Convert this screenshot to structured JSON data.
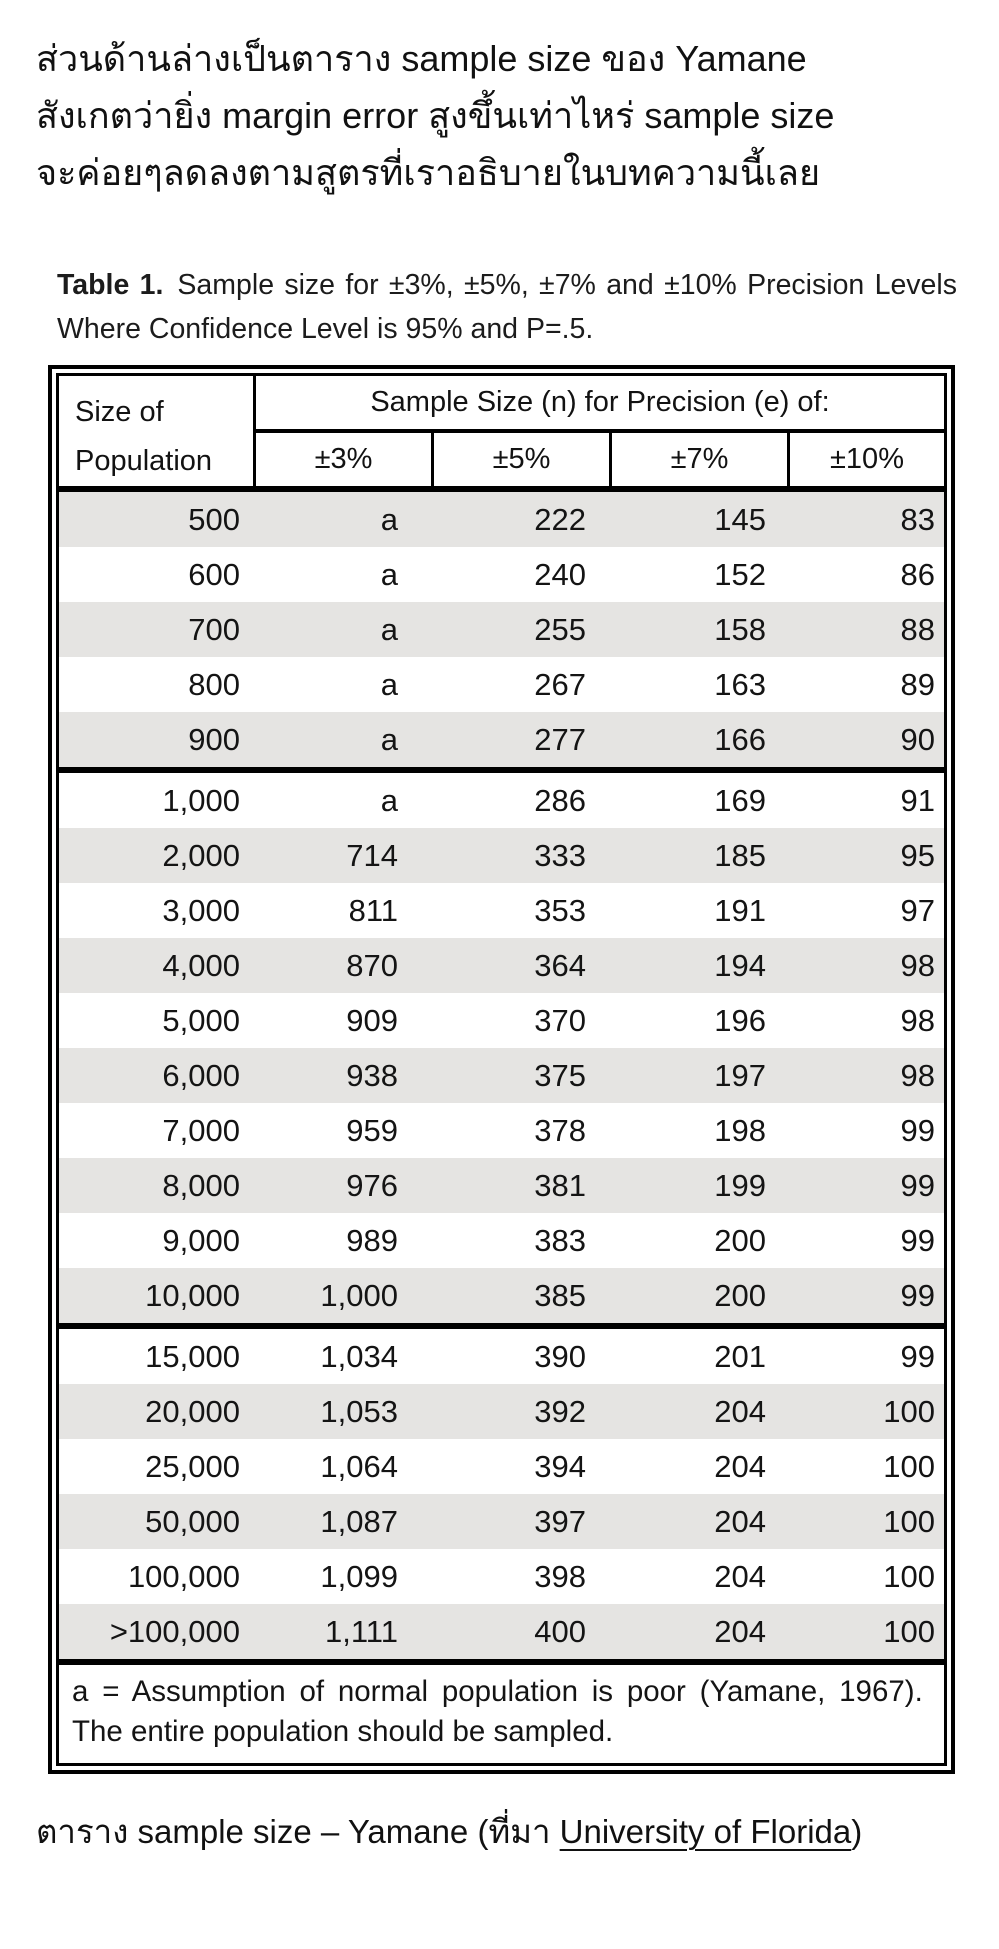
{
  "intro": {
    "lines": [
      "ส่วนด้านล่างเป็นตาราง sample size ของ Yamane",
      "สังเกตว่ายิ่ง margin error สูงขึ้นเท่าไหร่ sample size",
      "จะค่อยๆลดลงตามสูตรที่เราอธิบายในบทความนี้เลย"
    ]
  },
  "table_caption": {
    "label": "Table 1.",
    "text": "Sample size for ±3%, ±5%, ±7% and ±10% Precision Levels Where Confidence Level is 95% and P=.5."
  },
  "table": {
    "header": {
      "population_line1": "Size of",
      "population_line2": "Population",
      "span_header": "Sample Size (n) for Precision (e) of:",
      "precision_cols": [
        "±3%",
        "±5%",
        "±7%",
        "±10%"
      ]
    },
    "groups": [
      {
        "rows": [
          [
            "500",
            "a",
            "222",
            "145",
            "83"
          ],
          [
            "600",
            "a",
            "240",
            "152",
            "86"
          ],
          [
            "700",
            "a",
            "255",
            "158",
            "88"
          ],
          [
            "800",
            "a",
            "267",
            "163",
            "89"
          ],
          [
            "900",
            "a",
            "277",
            "166",
            "90"
          ]
        ]
      },
      {
        "rows": [
          [
            "1,000",
            "a",
            "286",
            "169",
            "91"
          ],
          [
            "2,000",
            "714",
            "333",
            "185",
            "95"
          ],
          [
            "3,000",
            "811",
            "353",
            "191",
            "97"
          ],
          [
            "4,000",
            "870",
            "364",
            "194",
            "98"
          ],
          [
            "5,000",
            "909",
            "370",
            "196",
            "98"
          ],
          [
            "6,000",
            "938",
            "375",
            "197",
            "98"
          ],
          [
            "7,000",
            "959",
            "378",
            "198",
            "99"
          ],
          [
            "8,000",
            "976",
            "381",
            "199",
            "99"
          ],
          [
            "9,000",
            "989",
            "383",
            "200",
            "99"
          ],
          [
            "10,000",
            "1,000",
            "385",
            "200",
            "99"
          ]
        ]
      },
      {
        "rows": [
          [
            "15,000",
            "1,034",
            "390",
            "201",
            "99"
          ],
          [
            "20,000",
            "1,053",
            "392",
            "204",
            "100"
          ],
          [
            "25,000",
            "1,064",
            "394",
            "204",
            "100"
          ],
          [
            "50,000",
            "1,087",
            "397",
            "204",
            "100"
          ],
          [
            "100,000",
            "1,099",
            "398",
            "204",
            "100"
          ],
          [
            ">100,000",
            "1,111",
            "400",
            "204",
            "100"
          ]
        ]
      }
    ],
    "footnote": "a = Assumption of normal population is poor (Yamane, 1967).  The entire population should be sampled."
  },
  "bottom_caption": {
    "prefix": "ตาราง sample size – Yamane (ที่มา ",
    "link": "University of Florida",
    "suffix": ")"
  }
}
